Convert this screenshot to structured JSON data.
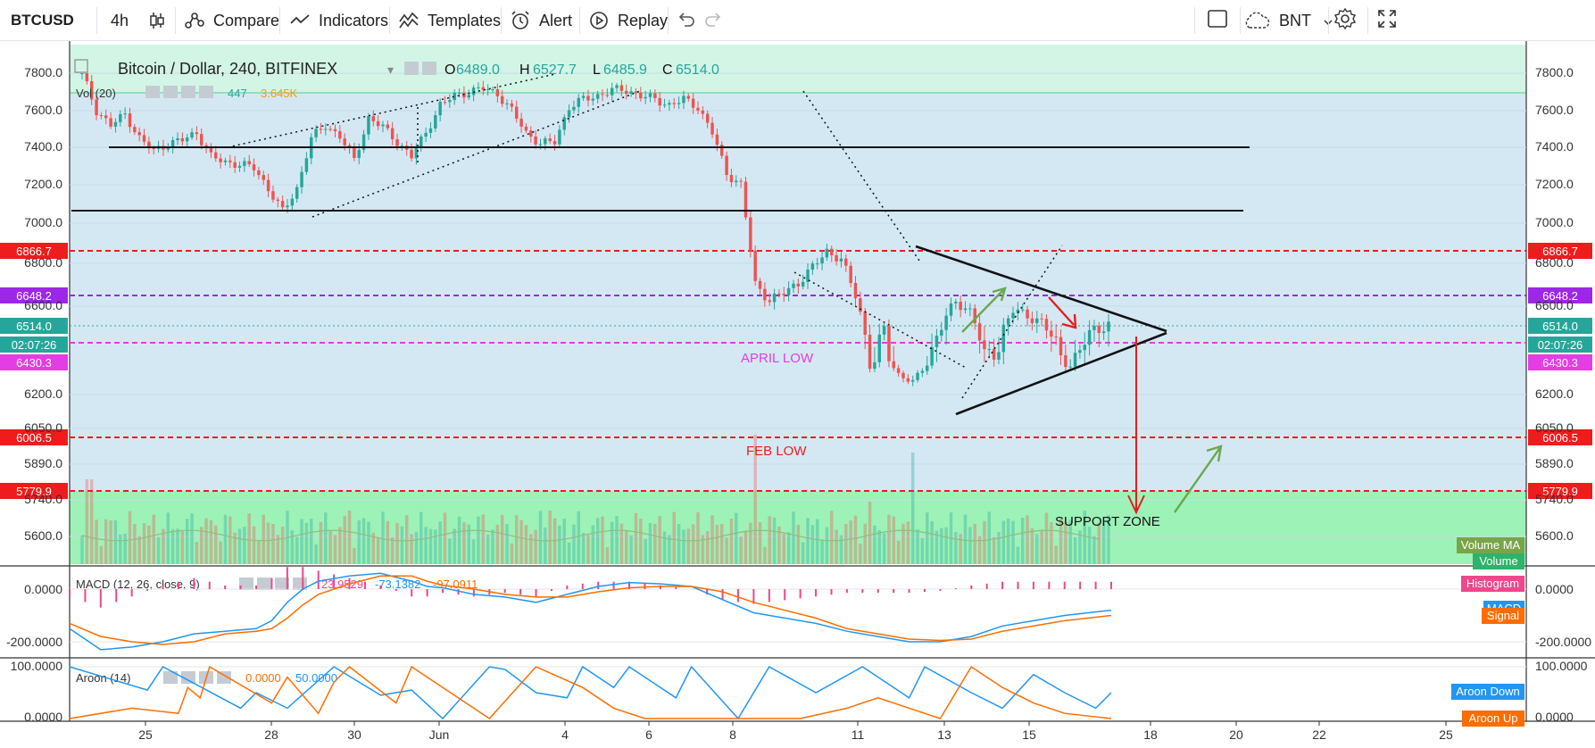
{
  "toolbar": {
    "symbol": "BTCUSD",
    "interval": "4h",
    "compare": "Compare",
    "indicators": "Indicators",
    "templates": "Templates",
    "alert": "Alert",
    "replay": "Replay",
    "currency": "BNT",
    "icons": [
      "candles-icon",
      "compare-icon",
      "indicators-icon",
      "templates-icon",
      "alert-icon",
      "replay-icon",
      "undo-icon",
      "redo-icon",
      "square-icon",
      "cloud-icon",
      "gear-icon",
      "fullscreen-icon"
    ]
  },
  "colors": {
    "up": "#26a69a",
    "down": "#ef5350",
    "bg_blue": "#d4e8f4",
    "bg_green_top": "#d2f5e6",
    "bg_green_zone": "#9df2b7",
    "red_line": "#ee1c1c",
    "purple_line": "#9c27e6",
    "magenta_line": "#e33de3",
    "macd": "#2196f3",
    "signal": "#ff6d00",
    "hist": "#f0468c",
    "aroon_up": "#ff6d00",
    "aroon_down": "#2196f3"
  },
  "chart_data": [
    {
      "type": "candlestick",
      "title": "Bitcoin / Dollar, 240, BITFINEX",
      "ohlc_header": {
        "o_label": "O",
        "o": "6489.0",
        "h_label": "H",
        "h": "6527.7",
        "l_label": "L",
        "l": "6485.9",
        "c_label": "C",
        "c": "6514.0"
      },
      "volume_legend": {
        "label": "Vol (20)",
        "v1": "447",
        "v2": "3.645K"
      },
      "x_tick_labels": [
        "25",
        "28",
        "30",
        "Jun",
        "4",
        "6",
        "8",
        "11",
        "13",
        "15",
        "18",
        "20",
        "22",
        "25"
      ],
      "y_tick_labels": [
        "7800.0",
        "7600.0",
        "7400.0",
        "7200.0",
        "7000.0",
        "6800.0",
        "6600.0",
        "6200.0",
        "6050.0",
        "5890.0",
        "5740.0",
        "5600.0"
      ],
      "ylim": [
        5450,
        7900
      ],
      "close_path": [
        [
          0,
          7800
        ],
        [
          3,
          7600
        ],
        [
          6,
          7520
        ],
        [
          9,
          7580
        ],
        [
          12,
          7450
        ],
        [
          15,
          7380
        ],
        [
          18,
          7420
        ],
        [
          21,
          7440
        ],
        [
          24,
          7480
        ],
        [
          27,
          7350
        ],
        [
          30,
          7320
        ],
        [
          33,
          7310
        ],
        [
          36,
          7290
        ],
        [
          39,
          7180
        ],
        [
          42,
          7060
        ],
        [
          45,
          7180
        ],
        [
          48,
          7450
        ],
        [
          51,
          7520
        ],
        [
          54,
          7460
        ],
        [
          57,
          7330
        ],
        [
          60,
          7560
        ],
        [
          63,
          7510
        ],
        [
          66,
          7430
        ],
        [
          69,
          7350
        ],
        [
          72,
          7480
        ],
        [
          75,
          7630
        ],
        [
          78,
          7680
        ],
        [
          81,
          7700
        ],
        [
          84,
          7720
        ],
        [
          87,
          7690
        ],
        [
          90,
          7600
        ],
        [
          93,
          7480
        ],
        [
          96,
          7420
        ],
        [
          99,
          7430
        ],
        [
          102,
          7620
        ],
        [
          105,
          7660
        ],
        [
          108,
          7680
        ],
        [
          111,
          7710
        ],
        [
          114,
          7710
        ],
        [
          117,
          7680
        ],
        [
          120,
          7660
        ],
        [
          123,
          7630
        ],
        [
          126,
          7660
        ],
        [
          129,
          7620
        ],
        [
          132,
          7480
        ],
        [
          135,
          7260
        ],
        [
          138,
          7200
        ],
        [
          141,
          6700
        ],
        [
          144,
          6630
        ],
        [
          147,
          6660
        ],
        [
          150,
          6710
        ],
        [
          153,
          6780
        ],
        [
          156,
          6860
        ],
        [
          159,
          6820
        ],
        [
          162,
          6650
        ],
        [
          165,
          6410
        ],
        [
          168,
          6500
        ],
        [
          171,
          6350
        ],
        [
          174,
          6290
        ],
        [
          177,
          6430
        ],
        [
          180,
          6520
        ],
        [
          183,
          6620
        ],
        [
          186,
          6580
        ],
        [
          189,
          6440
        ],
        [
          192,
          6470
        ],
        [
          195,
          6580
        ],
        [
          198,
          6560
        ],
        [
          201,
          6530
        ],
        [
          204,
          6470
        ],
        [
          207,
          6410
        ],
        [
          210,
          6480
        ],
        [
          213,
          6520
        ],
        [
          215,
          6514
        ]
      ],
      "price_levels": [
        {
          "value": 6866.7,
          "label": "6866.7",
          "style": "red-dashed"
        },
        {
          "value": 6648.2,
          "label": "6648.2",
          "style": "purple-dashed"
        },
        {
          "value": 6514.0,
          "label": "6514.0",
          "style": "last-price"
        },
        {
          "value": 6469.0,
          "label": "02:07:26",
          "style": "countdown"
        },
        {
          "value": 6430.3,
          "label": "6430.3",
          "style": "magenta-dashed"
        },
        {
          "value": 6006.5,
          "label": "6006.5",
          "style": "red-dashed"
        },
        {
          "value": 5779.9,
          "label": "5779.9",
          "style": "red-dashed"
        }
      ],
      "horizontal_lines": [
        7400,
        7070
      ],
      "annotations": [
        {
          "text": "APRIL LOW",
          "color": "#e33de3"
        },
        {
          "text": "FEB LOW",
          "color": "#ee1c1c"
        },
        {
          "text": "SUPPORT ZONE",
          "color": "#111111"
        }
      ],
      "legend_buttons": [
        "Volume MA",
        "Volume"
      ]
    },
    {
      "type": "line",
      "title": "MACD (12, 26, close, 9)",
      "values_label": [
        "23.9529",
        "-73.1382",
        "-97.0911"
      ],
      "y_tick_labels": [
        "0.0000",
        "-200.0000"
      ],
      "series": [
        {
          "name": "MACD",
          "points": [
            [
              0,
              -150
            ],
            [
              10,
              -230
            ],
            [
              20,
              -220
            ],
            [
              30,
              -200
            ],
            [
              40,
              -170
            ],
            [
              50,
              -160
            ],
            [
              60,
              -150
            ],
            [
              65,
              -120
            ],
            [
              70,
              -50
            ],
            [
              75,
              0
            ],
            [
              80,
              30
            ],
            [
              90,
              50
            ],
            [
              100,
              60
            ],
            [
              110,
              30
            ],
            [
              115,
              10
            ],
            [
              120,
              5
            ],
            [
              130,
              -20
            ],
            [
              140,
              -30
            ],
            [
              150,
              -50
            ],
            [
              160,
              -20
            ],
            [
              170,
              10
            ],
            [
              180,
              25
            ],
            [
              190,
              20
            ],
            [
              200,
              10
            ],
            [
              210,
              -40
            ],
            [
              220,
              -90
            ],
            [
              240,
              -130
            ],
            [
              250,
              -160
            ],
            [
              260,
              -180
            ],
            [
              270,
              -200
            ],
            [
              280,
              -200
            ],
            [
              290,
              -180
            ],
            [
              300,
              -140
            ],
            [
              310,
              -120
            ],
            [
              320,
              -100
            ],
            [
              335,
              -80
            ]
          ]
        },
        {
          "name": "Signal",
          "points": [
            [
              0,
              -130
            ],
            [
              10,
              -180
            ],
            [
              20,
              -200
            ],
            [
              30,
              -210
            ],
            [
              40,
              -200
            ],
            [
              50,
              -170
            ],
            [
              60,
              -160
            ],
            [
              65,
              -150
            ],
            [
              70,
              -110
            ],
            [
              75,
              -60
            ],
            [
              80,
              -20
            ],
            [
              90,
              20
            ],
            [
              100,
              50
            ],
            [
              110,
              50
            ],
            [
              115,
              30
            ],
            [
              120,
              15
            ],
            [
              130,
              0
            ],
            [
              140,
              -20
            ],
            [
              150,
              -30
            ],
            [
              160,
              -30
            ],
            [
              170,
              -10
            ],
            [
              180,
              5
            ],
            [
              190,
              10
            ],
            [
              200,
              10
            ],
            [
              210,
              -10
            ],
            [
              220,
              -50
            ],
            [
              240,
              -110
            ],
            [
              250,
              -150
            ],
            [
              260,
              -170
            ],
            [
              270,
              -190
            ],
            [
              280,
              -195
            ],
            [
              290,
              -190
            ],
            [
              300,
              -160
            ],
            [
              310,
              -140
            ],
            [
              320,
              -120
            ],
            [
              335,
              -100
            ]
          ]
        }
      ],
      "legend_buttons": [
        "Histogram",
        "MACD",
        "Signal"
      ]
    },
    {
      "type": "line",
      "title": "Aroon (14)",
      "values_label": [
        "0.0000",
        "50.0000"
      ],
      "y_tick_labels": [
        "100.0000",
        "0.0000"
      ],
      "series": [
        {
          "name": "Aroon Down",
          "points": [
            [
              0,
              100
            ],
            [
              25,
              55
            ],
            [
              30,
              100
            ],
            [
              55,
              20
            ],
            [
              60,
              50
            ],
            [
              70,
              20
            ],
            [
              85,
              100
            ],
            [
              100,
              45
            ],
            [
              110,
              55
            ],
            [
              120,
              0
            ],
            [
              135,
              100
            ],
            [
              140,
              95
            ],
            [
              150,
              50
            ],
            [
              160,
              40
            ],
            [
              165,
              100
            ],
            [
              175,
              60
            ],
            [
              180,
              100
            ],
            [
              195,
              40
            ],
            [
              200,
              100
            ],
            [
              215,
              0
            ],
            [
              225,
              100
            ],
            [
              240,
              50
            ],
            [
              255,
              100
            ],
            [
              270,
              40
            ],
            [
              275,
              100
            ],
            [
              290,
              50
            ],
            [
              300,
              20
            ],
            [
              310,
              85
            ],
            [
              320,
              50
            ],
            [
              330,
              20
            ],
            [
              335,
              50
            ]
          ]
        },
        {
          "name": "Aroon Up",
          "points": [
            [
              0,
              0
            ],
            [
              20,
              20
            ],
            [
              35,
              10
            ],
            [
              38,
              60
            ],
            [
              42,
              40
            ],
            [
              45,
              100
            ],
            [
              65,
              30
            ],
            [
              70,
              80
            ],
            [
              80,
              10
            ],
            [
              85,
              70
            ],
            [
              90,
              100
            ],
            [
              105,
              30
            ],
            [
              110,
              100
            ],
            [
              125,
              40
            ],
            [
              135,
              0
            ],
            [
              150,
              100
            ],
            [
              165,
              60
            ],
            [
              175,
              20
            ],
            [
              185,
              0
            ],
            [
              195,
              0
            ],
            [
              215,
              0
            ],
            [
              235,
              0
            ],
            [
              250,
              20
            ],
            [
              260,
              40
            ],
            [
              270,
              20
            ],
            [
              280,
              0
            ],
            [
              290,
              100
            ],
            [
              300,
              60
            ],
            [
              310,
              30
            ],
            [
              320,
              10
            ],
            [
              335,
              0
            ]
          ]
        }
      ],
      "legend_buttons": [
        "Aroon Down",
        "Aroon Up"
      ]
    }
  ]
}
